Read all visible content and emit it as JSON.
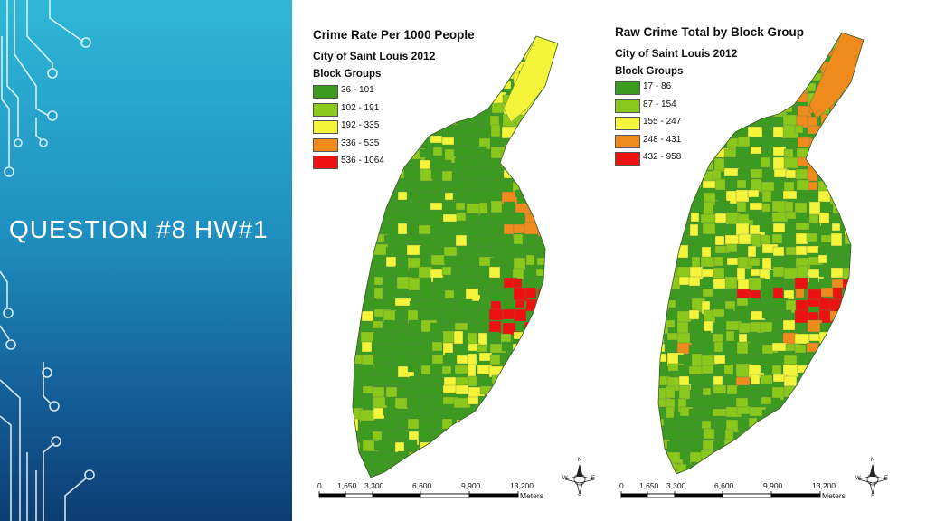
{
  "slide": {
    "title": "QUESTION #8 HW#1",
    "colors": {
      "side_top": "#2fb7d6",
      "side_bottom": "#0c3d73"
    }
  },
  "maps": [
    {
      "title": "Crime Rate Per 1000 People",
      "subtitle": "City of Saint Louis 2012",
      "legend_heading": "Block Groups",
      "legend": [
        {
          "label": "36 - 101",
          "color": "#3a9b1f"
        },
        {
          "label": "102 - 191",
          "color": "#8bc81c"
        },
        {
          "label": "192 - 335",
          "color": "#f4f53a"
        },
        {
          "label": "336 - 535",
          "color": "#ef8a1c"
        },
        {
          "label": "536 - 1064",
          "color": "#ee1111"
        }
      ],
      "scale_ticks": [
        "0",
        "1,650",
        "3,300",
        "6,600",
        "9,900",
        "13,200"
      ],
      "scale_unit": "Meters"
    },
    {
      "title": "Raw Crime Total by Block Group",
      "subtitle": "City of Saint Louis 2012",
      "legend_heading": "Block Groups",
      "legend": [
        {
          "label": "17 - 86",
          "color": "#3a9b1f"
        },
        {
          "label": "87 - 154",
          "color": "#8bc81c"
        },
        {
          "label": "155 - 247",
          "color": "#f4f53a"
        },
        {
          "label": "248 - 431",
          "color": "#ef8a1c"
        },
        {
          "label": "432 - 958",
          "color": "#ee1111"
        }
      ],
      "scale_ticks": [
        "0",
        "1,650",
        "3,300",
        "6,600",
        "9,900",
        "13,200"
      ],
      "scale_unit": "Meters"
    }
  ],
  "compass": {
    "n": "N",
    "s": "S",
    "e": "E",
    "w": "W"
  },
  "icons": {
    "circuit": "circuit-decoration-icon",
    "compass": "compass-rose-icon"
  }
}
